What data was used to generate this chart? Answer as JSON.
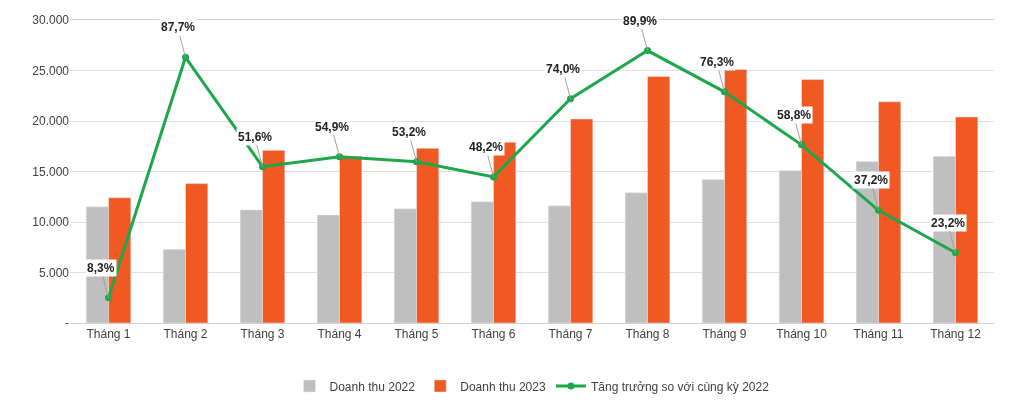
{
  "chart_data": {
    "type": "bar",
    "categories": [
      "Tháng 1",
      "Tháng 2",
      "Tháng 3",
      "Tháng 4",
      "Tháng 5",
      "Tháng 6",
      "Tháng 7",
      "Tháng 8",
      "Tháng 9",
      "Tháng 10",
      "Tháng 11",
      "Tháng 12"
    ],
    "series": [
      {
        "name": "Doanh thu 2022",
        "color": "#bfbfbf",
        "values": [
          11500,
          7300,
          11200,
          10700,
          11300,
          12000,
          11600,
          12900,
          14200,
          15100,
          16000,
          16500
        ]
      },
      {
        "name": "Doanh thu 2023",
        "color": "#f05a22",
        "values": [
          12400,
          13800,
          17100,
          16500,
          17300,
          17900,
          20200,
          24400,
          25100,
          24100,
          21900,
          20400
        ]
      },
      {
        "name": "Tăng trưởng so với cùng kỳ 2022",
        "type": "line",
        "axis": "y2",
        "color": "#1ea64a",
        "marker": "circle",
        "values": [
          8.3,
          87.7,
          51.6,
          54.9,
          53.2,
          48.2,
          74.0,
          89.9,
          76.3,
          58.8,
          37.2,
          23.2
        ],
        "value_labels": [
          "8,3%",
          "87,7%",
          "51,6%",
          "54,9%",
          "53,2%",
          "48,2%",
          "74,0%",
          "89,9%",
          "76,3%",
          "58,8%",
          "37,2%",
          "23,2%"
        ]
      }
    ],
    "ylim": [
      0,
      30000
    ],
    "yticks": [
      {
        "value": 0,
        "label": "-"
      },
      {
        "value": 5000,
        "label": "5.000"
      },
      {
        "value": 10000,
        "label": "10.000"
      },
      {
        "value": 15000,
        "label": "15.000"
      },
      {
        "value": 20000,
        "label": "20.000"
      },
      {
        "value": 25000,
        "label": "25.000"
      },
      {
        "value": 30000,
        "label": "30.000"
      }
    ],
    "y2lim": [
      0,
      100
    ],
    "grid": "y",
    "legend": "bottom"
  }
}
